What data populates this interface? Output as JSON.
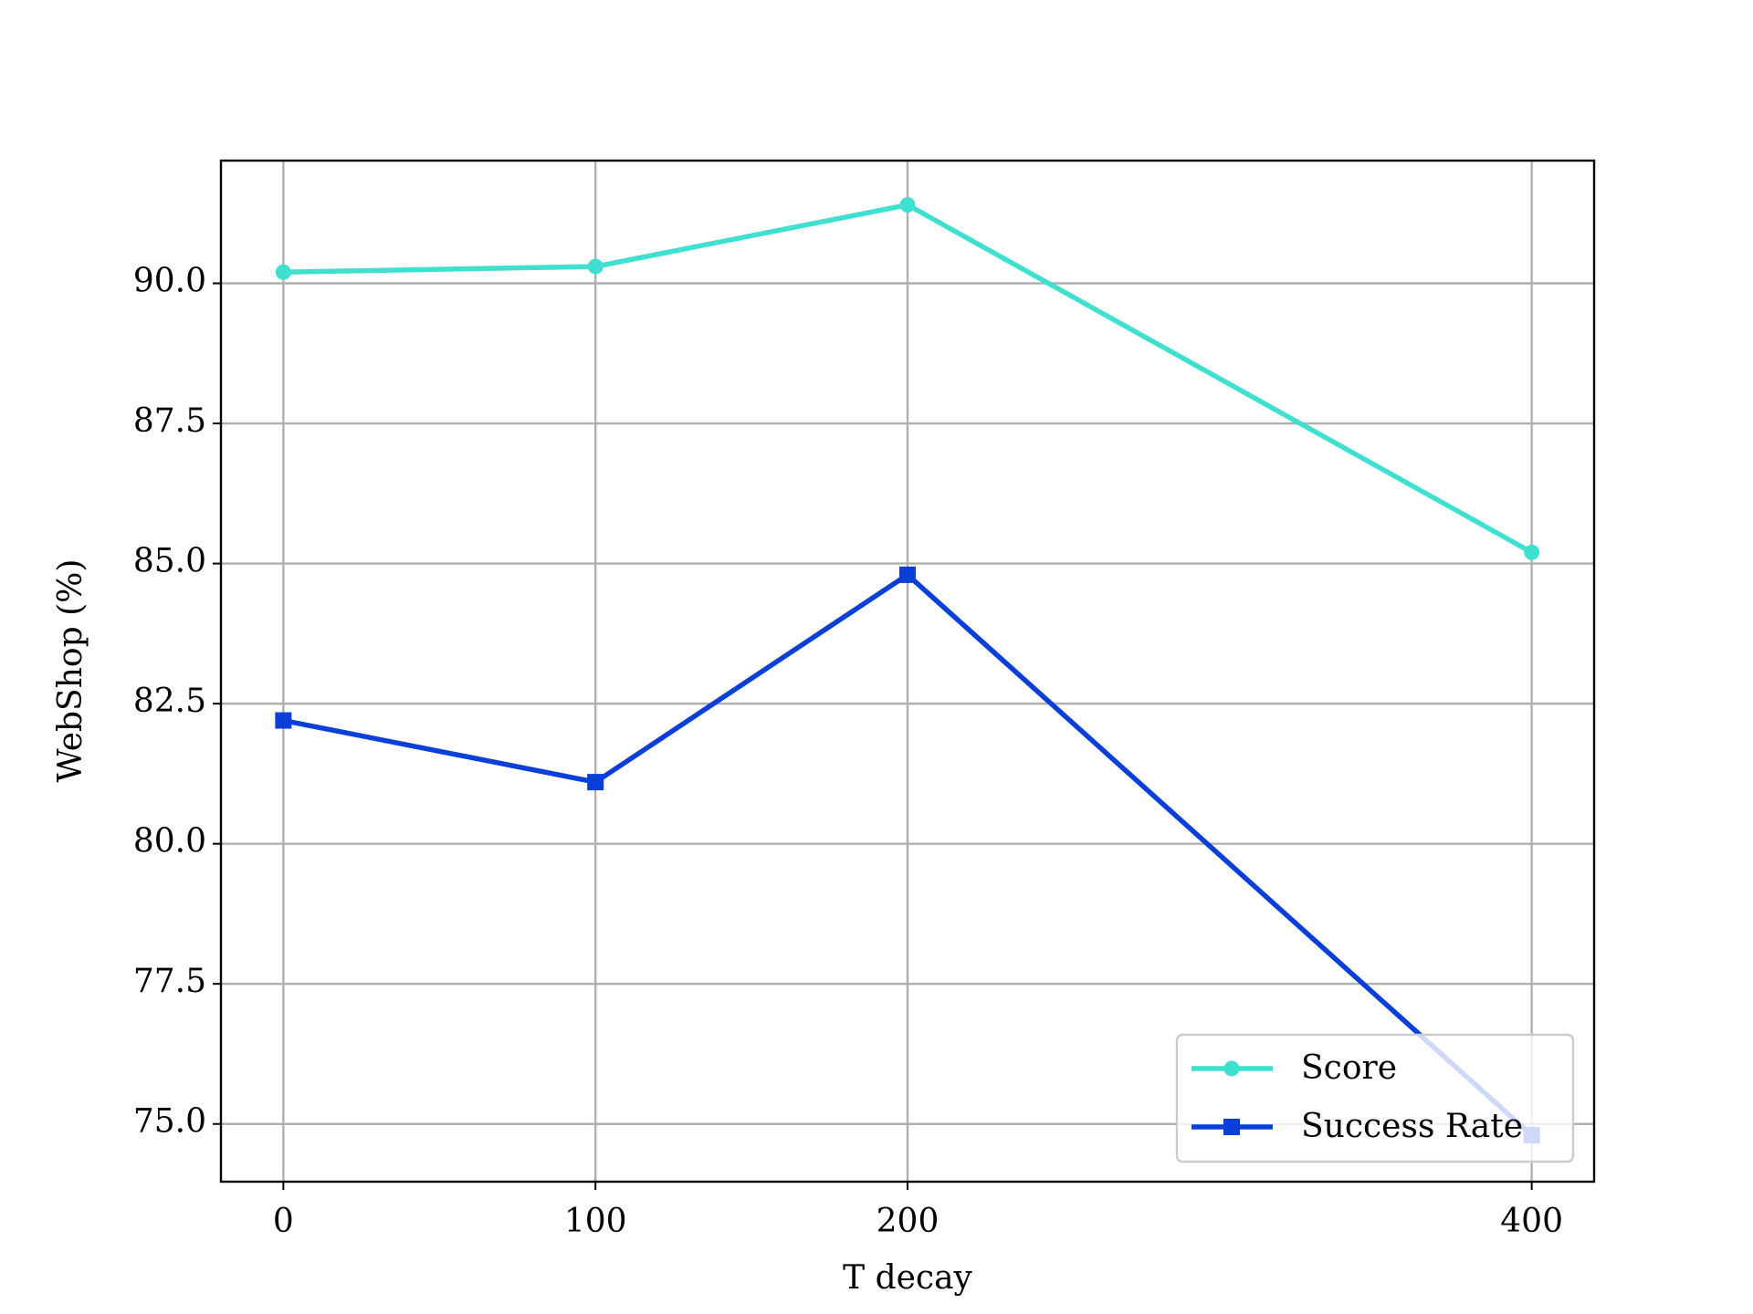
{
  "chart_data": {
    "type": "line",
    "xlabel": "T decay",
    "ylabel": "WebShop (%)",
    "x": [
      0,
      100,
      200,
      400
    ],
    "series": [
      {
        "name": "Score",
        "color": "#40e0d0",
        "marker": "circle",
        "values": [
          90.2,
          90.3,
          91.4,
          85.2
        ]
      },
      {
        "name": "Success Rate",
        "color": "#0a3fd8",
        "marker": "square",
        "values": [
          82.2,
          81.1,
          84.8,
          74.8
        ]
      }
    ],
    "xlim": [
      -20,
      420
    ],
    "xticks": [
      0,
      100,
      200,
      400
    ],
    "ylim": [
      73.97,
      92.19
    ],
    "yticks": [
      {
        "value": 75,
        "label": "75.0"
      },
      {
        "value": 77.5,
        "label": "77.5"
      },
      {
        "value": 80,
        "label": "80.0"
      },
      {
        "value": 82.5,
        "label": "82.5"
      },
      {
        "value": 85,
        "label": "85.0"
      },
      {
        "value": 87.5,
        "label": "87.5"
      },
      {
        "value": 90,
        "label": "90.0"
      }
    ],
    "grid": true,
    "legend": "lower right"
  }
}
